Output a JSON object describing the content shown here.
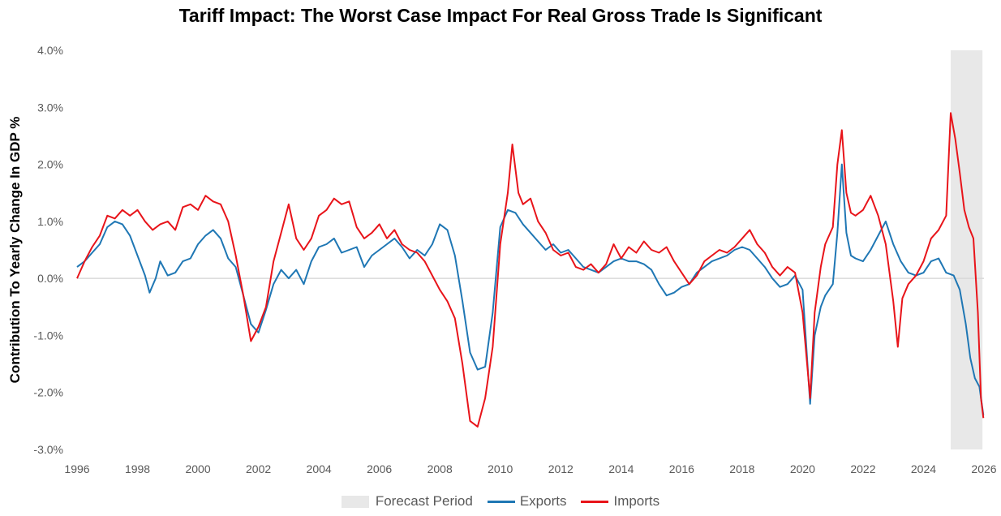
{
  "chart_data": {
    "type": "line",
    "title": "Tariff Impact: The Worst Case Impact For Real Gross Trade Is Significant",
    "ylabel": "Contribution To Yearly Change In GDP %",
    "xlabel": "",
    "ylim": [
      -3,
      4
    ],
    "xlim": [
      1996,
      2026
    ],
    "y_ticks": [
      "-3.0%",
      "-2.0%",
      "-1.0%",
      "0.0%",
      "1.0%",
      "2.0%",
      "3.0%",
      "4.0%"
    ],
    "x_ticks": [
      "1996",
      "1998",
      "2000",
      "2002",
      "2004",
      "2006",
      "2008",
      "2010",
      "2012",
      "2014",
      "2016",
      "2018",
      "2020",
      "2022",
      "2024",
      "2026"
    ],
    "forecast_period": {
      "label": "Forecast Period",
      "start": 2024.9,
      "end": 2025.95,
      "color": "#e8e8e8"
    },
    "legend_position": "bottom",
    "grid": false,
    "series": [
      {
        "name": "Exports",
        "color": "#1f77b4",
        "points": [
          [
            1996.0,
            0.2
          ],
          [
            1996.25,
            0.3
          ],
          [
            1996.5,
            0.45
          ],
          [
            1996.75,
            0.6
          ],
          [
            1997.0,
            0.9
          ],
          [
            1997.25,
            1.0
          ],
          [
            1997.5,
            0.95
          ],
          [
            1997.75,
            0.75
          ],
          [
            1998.0,
            0.4
          ],
          [
            1998.25,
            0.05
          ],
          [
            1998.4,
            -0.25
          ],
          [
            1998.6,
            0.0
          ],
          [
            1998.75,
            0.3
          ],
          [
            1999.0,
            0.05
          ],
          [
            1999.25,
            0.1
          ],
          [
            1999.5,
            0.3
          ],
          [
            1999.75,
            0.35
          ],
          [
            2000.0,
            0.6
          ],
          [
            2000.25,
            0.75
          ],
          [
            2000.5,
            0.85
          ],
          [
            2000.75,
            0.7
          ],
          [
            2001.0,
            0.35
          ],
          [
            2001.25,
            0.2
          ],
          [
            2001.5,
            -0.3
          ],
          [
            2001.75,
            -0.8
          ],
          [
            2002.0,
            -0.95
          ],
          [
            2002.25,
            -0.55
          ],
          [
            2002.5,
            -0.1
          ],
          [
            2002.75,
            0.15
          ],
          [
            2003.0,
            0.0
          ],
          [
            2003.25,
            0.15
          ],
          [
            2003.5,
            -0.1
          ],
          [
            2003.75,
            0.3
          ],
          [
            2004.0,
            0.55
          ],
          [
            2004.25,
            0.6
          ],
          [
            2004.5,
            0.7
          ],
          [
            2004.75,
            0.45
          ],
          [
            2005.0,
            0.5
          ],
          [
            2005.25,
            0.55
          ],
          [
            2005.5,
            0.2
          ],
          [
            2005.75,
            0.4
          ],
          [
            2006.0,
            0.5
          ],
          [
            2006.25,
            0.6
          ],
          [
            2006.5,
            0.7
          ],
          [
            2006.75,
            0.55
          ],
          [
            2007.0,
            0.35
          ],
          [
            2007.25,
            0.5
          ],
          [
            2007.5,
            0.4
          ],
          [
            2007.75,
            0.6
          ],
          [
            2008.0,
            0.95
          ],
          [
            2008.25,
            0.85
          ],
          [
            2008.5,
            0.4
          ],
          [
            2008.75,
            -0.4
          ],
          [
            2009.0,
            -1.3
          ],
          [
            2009.25,
            -1.6
          ],
          [
            2009.5,
            -1.55
          ],
          [
            2009.75,
            -0.6
          ],
          [
            2010.0,
            0.9
          ],
          [
            2010.25,
            1.2
          ],
          [
            2010.5,
            1.15
          ],
          [
            2010.75,
            0.95
          ],
          [
            2011.0,
            0.8
          ],
          [
            2011.25,
            0.65
          ],
          [
            2011.5,
            0.5
          ],
          [
            2011.75,
            0.6
          ],
          [
            2012.0,
            0.45
          ],
          [
            2012.25,
            0.5
          ],
          [
            2012.5,
            0.35
          ],
          [
            2012.75,
            0.2
          ],
          [
            2013.0,
            0.15
          ],
          [
            2013.25,
            0.1
          ],
          [
            2013.5,
            0.2
          ],
          [
            2013.75,
            0.3
          ],
          [
            2014.0,
            0.35
          ],
          [
            2014.25,
            0.3
          ],
          [
            2014.5,
            0.3
          ],
          [
            2014.75,
            0.25
          ],
          [
            2015.0,
            0.15
          ],
          [
            2015.25,
            -0.1
          ],
          [
            2015.5,
            -0.3
          ],
          [
            2015.75,
            -0.25
          ],
          [
            2016.0,
            -0.15
          ],
          [
            2016.25,
            -0.1
          ],
          [
            2016.5,
            0.1
          ],
          [
            2016.75,
            0.2
          ],
          [
            2017.0,
            0.3
          ],
          [
            2017.25,
            0.35
          ],
          [
            2017.5,
            0.4
          ],
          [
            2017.75,
            0.5
          ],
          [
            2018.0,
            0.55
          ],
          [
            2018.25,
            0.5
          ],
          [
            2018.5,
            0.35
          ],
          [
            2018.75,
            0.2
          ],
          [
            2019.0,
            0.0
          ],
          [
            2019.25,
            -0.15
          ],
          [
            2019.5,
            -0.1
          ],
          [
            2019.75,
            0.05
          ],
          [
            2020.0,
            -0.2
          ],
          [
            2020.25,
            -2.2
          ],
          [
            2020.4,
            -1.0
          ],
          [
            2020.6,
            -0.5
          ],
          [
            2020.75,
            -0.3
          ],
          [
            2021.0,
            -0.1
          ],
          [
            2021.15,
            0.8
          ],
          [
            2021.3,
            2.0
          ],
          [
            2021.45,
            0.8
          ],
          [
            2021.6,
            0.4
          ],
          [
            2021.75,
            0.35
          ],
          [
            2022.0,
            0.3
          ],
          [
            2022.25,
            0.5
          ],
          [
            2022.5,
            0.75
          ],
          [
            2022.75,
            1.0
          ],
          [
            2023.0,
            0.6
          ],
          [
            2023.25,
            0.3
          ],
          [
            2023.5,
            0.1
          ],
          [
            2023.75,
            0.05
          ],
          [
            2024.0,
            0.1
          ],
          [
            2024.25,
            0.3
          ],
          [
            2024.5,
            0.35
          ],
          [
            2024.75,
            0.1
          ],
          [
            2025.0,
            0.05
          ],
          [
            2025.2,
            -0.2
          ],
          [
            2025.4,
            -0.8
          ],
          [
            2025.55,
            -1.4
          ],
          [
            2025.7,
            -1.75
          ],
          [
            2025.85,
            -1.9
          ],
          [
            2025.98,
            -2.4
          ]
        ]
      },
      {
        "name": "Imports",
        "color": "#e8141a",
        "points": [
          [
            1996.0,
            0.0
          ],
          [
            1996.25,
            0.3
          ],
          [
            1996.5,
            0.55
          ],
          [
            1996.75,
            0.75
          ],
          [
            1997.0,
            1.1
          ],
          [
            1997.25,
            1.05
          ],
          [
            1997.5,
            1.2
          ],
          [
            1997.75,
            1.1
          ],
          [
            1998.0,
            1.2
          ],
          [
            1998.25,
            1.0
          ],
          [
            1998.5,
            0.85
          ],
          [
            1998.75,
            0.95
          ],
          [
            1999.0,
            1.0
          ],
          [
            1999.25,
            0.85
          ],
          [
            1999.5,
            1.25
          ],
          [
            1999.75,
            1.3
          ],
          [
            2000.0,
            1.2
          ],
          [
            2000.25,
            1.45
          ],
          [
            2000.5,
            1.35
          ],
          [
            2000.75,
            1.3
          ],
          [
            2001.0,
            1.0
          ],
          [
            2001.25,
            0.4
          ],
          [
            2001.5,
            -0.3
          ],
          [
            2001.75,
            -1.1
          ],
          [
            2002.0,
            -0.85
          ],
          [
            2002.25,
            -0.5
          ],
          [
            2002.5,
            0.3
          ],
          [
            2002.75,
            0.8
          ],
          [
            2003.0,
            1.3
          ],
          [
            2003.25,
            0.7
          ],
          [
            2003.5,
            0.5
          ],
          [
            2003.75,
            0.7
          ],
          [
            2004.0,
            1.1
          ],
          [
            2004.25,
            1.2
          ],
          [
            2004.5,
            1.4
          ],
          [
            2004.75,
            1.3
          ],
          [
            2005.0,
            1.35
          ],
          [
            2005.25,
            0.9
          ],
          [
            2005.5,
            0.7
          ],
          [
            2005.75,
            0.8
          ],
          [
            2006.0,
            0.95
          ],
          [
            2006.25,
            0.7
          ],
          [
            2006.5,
            0.85
          ],
          [
            2006.75,
            0.6
          ],
          [
            2007.0,
            0.5
          ],
          [
            2007.25,
            0.45
          ],
          [
            2007.5,
            0.3
          ],
          [
            2007.75,
            0.05
          ],
          [
            2008.0,
            -0.2
          ],
          [
            2008.25,
            -0.4
          ],
          [
            2008.5,
            -0.7
          ],
          [
            2008.75,
            -1.5
          ],
          [
            2009.0,
            -2.5
          ],
          [
            2009.25,
            -2.6
          ],
          [
            2009.5,
            -2.1
          ],
          [
            2009.75,
            -1.2
          ],
          [
            2010.0,
            0.6
          ],
          [
            2010.25,
            1.5
          ],
          [
            2010.4,
            2.35
          ],
          [
            2010.6,
            1.5
          ],
          [
            2010.75,
            1.3
          ],
          [
            2011.0,
            1.4
          ],
          [
            2011.25,
            1.0
          ],
          [
            2011.5,
            0.8
          ],
          [
            2011.75,
            0.5
          ],
          [
            2012.0,
            0.4
          ],
          [
            2012.25,
            0.45
          ],
          [
            2012.5,
            0.2
          ],
          [
            2012.75,
            0.15
          ],
          [
            2013.0,
            0.25
          ],
          [
            2013.25,
            0.1
          ],
          [
            2013.5,
            0.25
          ],
          [
            2013.75,
            0.6
          ],
          [
            2014.0,
            0.35
          ],
          [
            2014.25,
            0.55
          ],
          [
            2014.5,
            0.45
          ],
          [
            2014.75,
            0.65
          ],
          [
            2015.0,
            0.5
          ],
          [
            2015.25,
            0.45
          ],
          [
            2015.5,
            0.55
          ],
          [
            2015.75,
            0.3
          ],
          [
            2016.0,
            0.1
          ],
          [
            2016.25,
            -0.1
          ],
          [
            2016.5,
            0.05
          ],
          [
            2016.75,
            0.3
          ],
          [
            2017.0,
            0.4
          ],
          [
            2017.25,
            0.5
          ],
          [
            2017.5,
            0.45
          ],
          [
            2017.75,
            0.55
          ],
          [
            2018.0,
            0.7
          ],
          [
            2018.25,
            0.85
          ],
          [
            2018.5,
            0.6
          ],
          [
            2018.75,
            0.45
          ],
          [
            2019.0,
            0.2
          ],
          [
            2019.25,
            0.05
          ],
          [
            2019.5,
            0.2
          ],
          [
            2019.75,
            0.1
          ],
          [
            2020.0,
            -0.6
          ],
          [
            2020.25,
            -2.1
          ],
          [
            2020.4,
            -0.6
          ],
          [
            2020.6,
            0.2
          ],
          [
            2020.75,
            0.6
          ],
          [
            2021.0,
            0.9
          ],
          [
            2021.15,
            2.0
          ],
          [
            2021.3,
            2.6
          ],
          [
            2021.45,
            1.5
          ],
          [
            2021.6,
            1.15
          ],
          [
            2021.75,
            1.1
          ],
          [
            2022.0,
            1.2
          ],
          [
            2022.25,
            1.45
          ],
          [
            2022.5,
            1.1
          ],
          [
            2022.75,
            0.6
          ],
          [
            2023.0,
            -0.4
          ],
          [
            2023.15,
            -1.2
          ],
          [
            2023.3,
            -0.35
          ],
          [
            2023.5,
            -0.1
          ],
          [
            2023.75,
            0.05
          ],
          [
            2024.0,
            0.3
          ],
          [
            2024.25,
            0.7
          ],
          [
            2024.5,
            0.85
          ],
          [
            2024.75,
            1.1
          ],
          [
            2024.9,
            2.9
          ],
          [
            2025.05,
            2.45
          ],
          [
            2025.2,
            1.85
          ],
          [
            2025.35,
            1.2
          ],
          [
            2025.5,
            0.9
          ],
          [
            2025.65,
            0.7
          ],
          [
            2025.8,
            -0.6
          ],
          [
            2025.9,
            -2.1
          ],
          [
            2025.98,
            -2.45
          ]
        ]
      }
    ]
  }
}
